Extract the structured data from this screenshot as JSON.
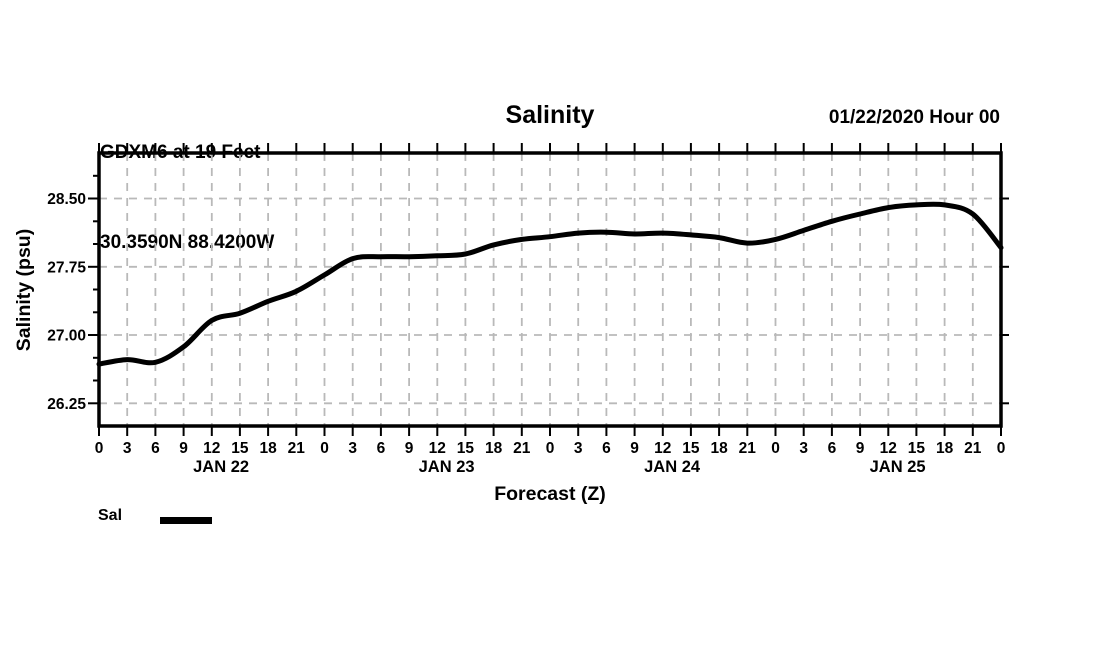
{
  "header": {
    "station": "GDXM6 at 19 Feet",
    "location": "30.3590N 88.4200W",
    "title": "Salinity",
    "datetime": "01/22/2020 Hour 00"
  },
  "legend": {
    "label": "Sal"
  },
  "chart_data": {
    "type": "line",
    "title": "Salinity",
    "xlabel": "Forecast (Z)",
    "ylabel": "Salinity (psu)",
    "xlim": [
      0,
      96
    ],
    "ylim": [
      26.0,
      29.0
    ],
    "x_tick_step_hours": 3,
    "x_tick_label_mod": 24,
    "day_labels": [
      "JAN 22",
      "JAN 23",
      "JAN 24",
      "JAN 25"
    ],
    "y_major_ticks": [
      26.25,
      27.0,
      27.75,
      28.5
    ],
    "y_major_tick_labels": [
      "26.25",
      "27.00",
      "27.75",
      "28.50"
    ],
    "y_minor_step": 0.25,
    "grid": "dashed",
    "legend_position": "bottom-left",
    "x": [
      0,
      3,
      6,
      9,
      12,
      15,
      18,
      21,
      24,
      27,
      30,
      33,
      36,
      39,
      42,
      45,
      48,
      51,
      54,
      57,
      60,
      63,
      66,
      69,
      72,
      75,
      78,
      81,
      84,
      87,
      90,
      93,
      96
    ],
    "series": [
      {
        "name": "Sal",
        "color": "#000000",
        "values": [
          26.68,
          26.73,
          26.7,
          26.87,
          27.16,
          27.24,
          27.37,
          27.48,
          27.66,
          27.84,
          27.86,
          27.86,
          27.87,
          27.89,
          27.99,
          28.05,
          28.08,
          28.12,
          28.13,
          28.11,
          28.12,
          28.1,
          28.07,
          28.01,
          28.05,
          28.15,
          28.25,
          28.33,
          28.4,
          28.43,
          28.43,
          28.33,
          27.96
        ]
      }
    ],
    "colors": {
      "line": "#000000",
      "grid": "#b9b9b9",
      "axis": "#000000"
    }
  }
}
